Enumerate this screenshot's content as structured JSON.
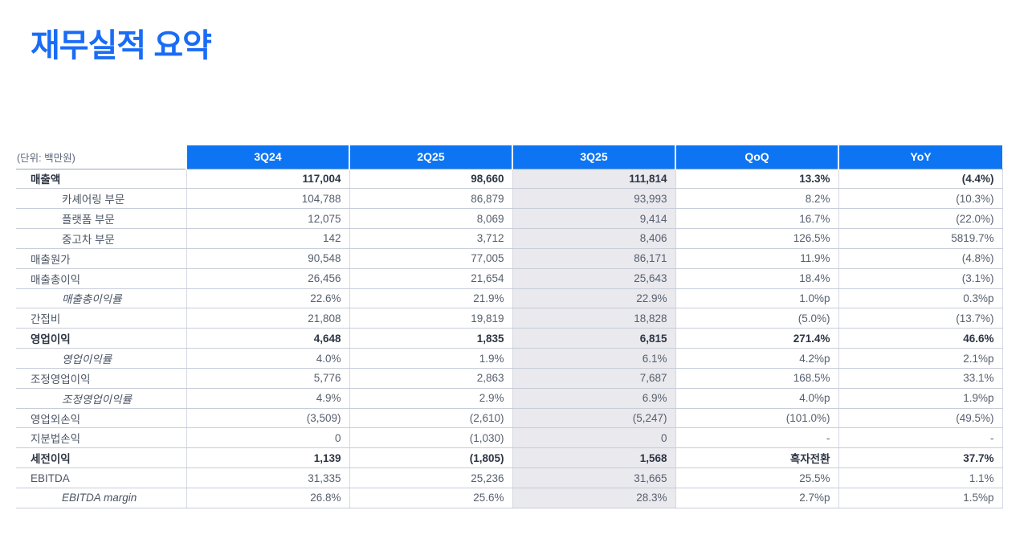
{
  "title": "재무실적 요약",
  "colors": {
    "accent_blue": "#1a6cf5",
    "header_blue": "#0d75f3",
    "header_text": "#ffffff",
    "highlight_column_bg": "#e9e9ee"
  },
  "table": {
    "unit_label": "(단위: 백만원)",
    "columns": [
      "3Q24",
      "2Q25",
      "3Q25",
      "QoQ",
      "YoY"
    ],
    "highlight_column": "3Q25",
    "rows": [
      {
        "label": "매출액",
        "indent": 0,
        "emphasis": "bold",
        "values": [
          "117,004",
          "98,660",
          "111,814",
          "13.3%",
          "(4.4%)"
        ]
      },
      {
        "label": "카셰어링 부문",
        "indent": 1,
        "emphasis": "normal",
        "values": [
          "104,788",
          "86,879",
          "93,993",
          "8.2%",
          "(10.3%)"
        ]
      },
      {
        "label": "플랫폼 부문",
        "indent": 1,
        "emphasis": "normal",
        "values": [
          "12,075",
          "8,069",
          "9,414",
          "16.7%",
          "(22.0%)"
        ]
      },
      {
        "label": "중고차 부문",
        "indent": 1,
        "emphasis": "normal",
        "values": [
          "142",
          "3,712",
          "8,406",
          "126.5%",
          "5819.7%"
        ]
      },
      {
        "label": "매출원가",
        "indent": 0,
        "emphasis": "normal",
        "values": [
          "90,548",
          "77,005",
          "86,171",
          "11.9%",
          "(4.8%)"
        ]
      },
      {
        "label": "매출총이익",
        "indent": 0,
        "emphasis": "normal",
        "values": [
          "26,456",
          "21,654",
          "25,643",
          "18.4%",
          "(3.1%)"
        ]
      },
      {
        "label": "매출총이익률",
        "indent": 1,
        "emphasis": "italic",
        "values": [
          "22.6%",
          "21.9%",
          "22.9%",
          "1.0%p",
          "0.3%p"
        ]
      },
      {
        "label": "간접비",
        "indent": 0,
        "emphasis": "normal",
        "values": [
          "21,808",
          "19,819",
          "18,828",
          "(5.0%)",
          "(13.7%)"
        ]
      },
      {
        "label": "영업이익",
        "indent": 0,
        "emphasis": "bold",
        "values": [
          "4,648",
          "1,835",
          "6,815",
          "271.4%",
          "46.6%"
        ]
      },
      {
        "label": "영업이익률",
        "indent": 1,
        "emphasis": "italic",
        "values": [
          "4.0%",
          "1.9%",
          "6.1%",
          "4.2%p",
          "2.1%p"
        ]
      },
      {
        "label": "조정영업이익",
        "indent": 0,
        "emphasis": "normal",
        "values": [
          "5,776",
          "2,863",
          "7,687",
          "168.5%",
          "33.1%"
        ]
      },
      {
        "label": "조정영업이익률",
        "indent": 1,
        "emphasis": "italic",
        "values": [
          "4.9%",
          "2.9%",
          "6.9%",
          "4.0%p",
          "1.9%p"
        ]
      },
      {
        "label": "영업외손익",
        "indent": 0,
        "emphasis": "normal",
        "values": [
          "(3,509)",
          "(2,610)",
          "(5,247)",
          "(101.0%)",
          "(49.5%)"
        ]
      },
      {
        "label": "지분법손익",
        "indent": 0,
        "emphasis": "normal",
        "values": [
          "0",
          "(1,030)",
          "0",
          "-",
          "-"
        ]
      },
      {
        "label": "세전이익",
        "indent": 0,
        "emphasis": "bold",
        "values": [
          "1,139",
          "(1,805)",
          "1,568",
          "흑자전환",
          "37.7%"
        ]
      },
      {
        "label": "EBITDA",
        "indent": 0,
        "emphasis": "normal",
        "values": [
          "31,335",
          "25,236",
          "31,665",
          "25.5%",
          "1.1%"
        ]
      },
      {
        "label": "EBITDA margin",
        "indent": 1,
        "emphasis": "italic",
        "values": [
          "26.8%",
          "25.6%",
          "28.3%",
          "2.7%p",
          "1.5%p"
        ]
      }
    ]
  }
}
